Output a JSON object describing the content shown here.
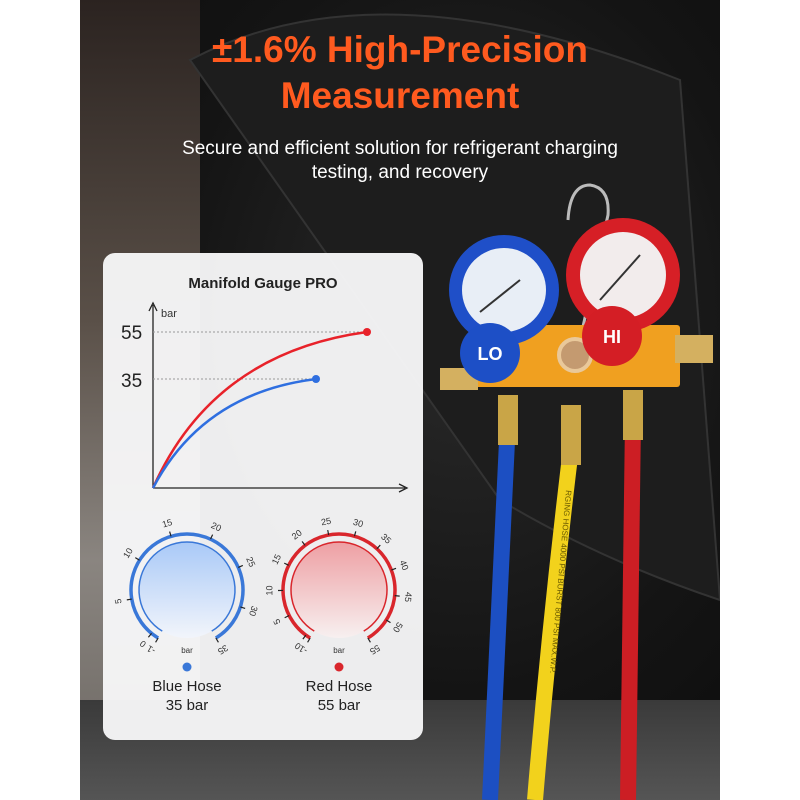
{
  "header": {
    "title_line1": "±1.6% High-Precision",
    "title_line2": "Measurement",
    "subtitle_line1": "Secure and efficient solution for refrigerant charging",
    "subtitle_line2": "testing, and recovery"
  },
  "card": {
    "title": "Manifold Gauge PRO",
    "chart": {
      "y_unit": "bar",
      "y_ticks": [
        "55",
        "35"
      ],
      "series": [
        {
          "color": "#e8222a",
          "end_value": 55
        },
        {
          "color": "#2f6fe0",
          "end_value": 35
        }
      ]
    },
    "dials": [
      {
        "name": "Blue Hose",
        "value": "35 bar",
        "unit": "bar",
        "min": -1,
        "max": 35,
        "ticks": [
          "-1",
          "0",
          "5",
          "10",
          "15",
          "20",
          "25",
          "30",
          "35"
        ],
        "color": "#3a78d8",
        "fill": "#a9c9f7"
      },
      {
        "name": "Red Hose",
        "value": "55 bar",
        "unit": "bar",
        "min": -1,
        "max": 55,
        "ticks": [
          "-1",
          "0",
          "5",
          "10",
          "15",
          "20",
          "25",
          "30",
          "35",
          "40",
          "45",
          "50",
          "55"
        ],
        "color": "#d9262c",
        "fill": "#ee9fa3"
      }
    ]
  },
  "product": {
    "lo_label": "LO",
    "hi_label": "HI",
    "hose_text": "RGING HOSE 4000 PSI BURST 800 PSI MAX.W.P."
  }
}
